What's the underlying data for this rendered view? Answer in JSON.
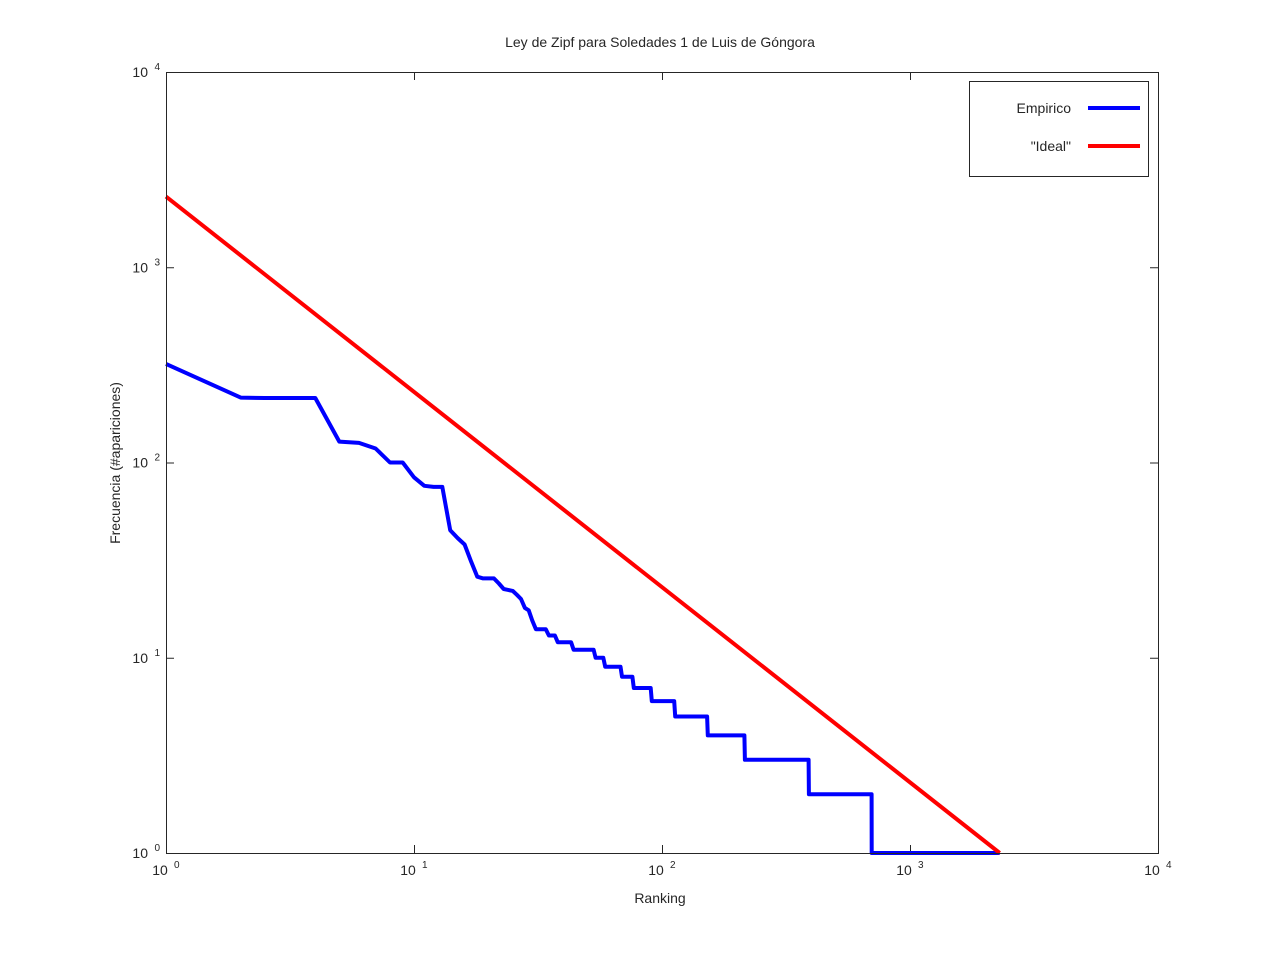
{
  "chart_data": {
    "type": "line",
    "title": "Ley de Zipf para Soledades 1 de Luis de Góngora",
    "xlabel": "Ranking",
    "ylabel": "Frecuencia (#apariciones)",
    "xscale": "log",
    "yscale": "log",
    "xlim": [
      1,
      10000
    ],
    "ylim": [
      1,
      10000
    ],
    "grid": false,
    "legend_position": "top-right",
    "x_ticks": [
      {
        "base": "10",
        "exp": "0",
        "value": 1
      },
      {
        "base": "10",
        "exp": "1",
        "value": 10
      },
      {
        "base": "10",
        "exp": "2",
        "value": 100
      },
      {
        "base": "10",
        "exp": "3",
        "value": 1000
      },
      {
        "base": "10",
        "exp": "4",
        "value": 10000
      }
    ],
    "y_ticks": [
      {
        "base": "10",
        "exp": "0",
        "value": 1
      },
      {
        "base": "10",
        "exp": "1",
        "value": 10
      },
      {
        "base": "10",
        "exp": "2",
        "value": 100
      },
      {
        "base": "10",
        "exp": "3",
        "value": 1000
      },
      {
        "base": "10",
        "exp": "4",
        "value": 10000
      }
    ],
    "series": [
      {
        "name": "Empirico",
        "color": "#0000ff",
        "points": [
          [
            1,
            320
          ],
          [
            2,
            215
          ],
          [
            2.5,
            214
          ],
          [
            4,
            214
          ],
          [
            5,
            128
          ],
          [
            6,
            126
          ],
          [
            7,
            118
          ],
          [
            8,
            100
          ],
          [
            9,
            100
          ],
          [
            10,
            84
          ],
          [
            11,
            76
          ],
          [
            12,
            75
          ],
          [
            13,
            75
          ],
          [
            14,
            45
          ],
          [
            15,
            41
          ],
          [
            16,
            38
          ],
          [
            17,
            31
          ],
          [
            18,
            26
          ],
          [
            19,
            25.5
          ],
          [
            21,
            25.5
          ],
          [
            22,
            24
          ],
          [
            23,
            22.5
          ],
          [
            25,
            22
          ],
          [
            26,
            21
          ],
          [
            27,
            20
          ],
          [
            28,
            18
          ],
          [
            29,
            17.5
          ],
          [
            30,
            15.5
          ],
          [
            31,
            14
          ],
          [
            34,
            14
          ],
          [
            35,
            13
          ],
          [
            37,
            13
          ],
          [
            38,
            12
          ],
          [
            43,
            12
          ],
          [
            44,
            11
          ],
          [
            53,
            11
          ],
          [
            54,
            10
          ],
          [
            58,
            10
          ],
          [
            59,
            9
          ],
          [
            68,
            9
          ],
          [
            69,
            8
          ],
          [
            76,
            8
          ],
          [
            77,
            7
          ],
          [
            90,
            7
          ],
          [
            91,
            6
          ],
          [
            112,
            6
          ],
          [
            113,
            5
          ],
          [
            152,
            5
          ],
          [
            153,
            4
          ],
          [
            215,
            4
          ],
          [
            216,
            3
          ],
          [
            390,
            3
          ],
          [
            391,
            2
          ],
          [
            700,
            2
          ],
          [
            701,
            1
          ],
          [
            2300,
            1
          ]
        ]
      },
      {
        "name": "\"Ideal\"",
        "color": "#ff0000",
        "points": [
          [
            1,
            2300
          ],
          [
            2300,
            1
          ]
        ]
      }
    ]
  }
}
